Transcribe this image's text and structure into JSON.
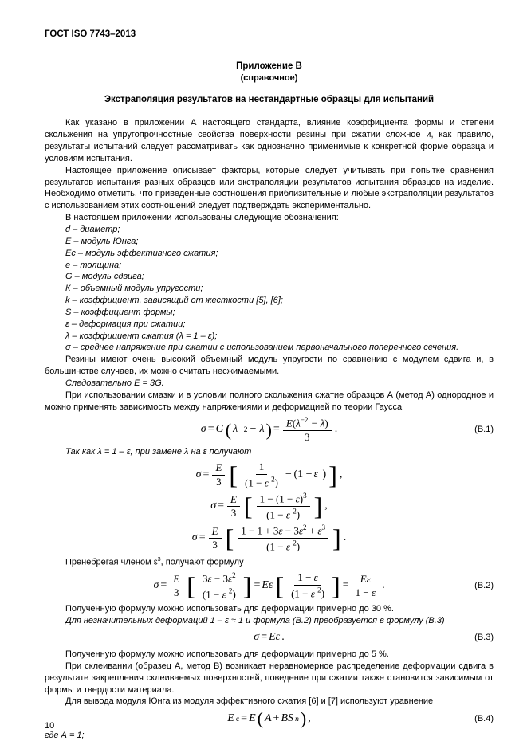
{
  "doc_id": "ГОСТ ISO 7743–2013",
  "appendix_title": "Приложение В",
  "appendix_sub": "(справочное)",
  "appendix_heading": "Экстраполяция результатов на нестандартные образцы для испытаний",
  "p1": "Как указано в приложении А настоящего стандарта, влияние коэффициента формы и степени скольжения на упругопрочностные свойства поверхности резины при сжатии сложное и, как правило, результаты испытаний следует рассматривать как однозначно применимые к конкретной форме образца и условиям испытания.",
  "p2": "Настоящее приложение описывает факторы, которые следует учитывать при попытке сравнения результатов испытания разных образцов или экстраполяции результатов испытания образцов на изделие. Необходимо отметить, что приведенные соотношения приблизительные и любые экстраполяции результатов с использованием этих соотношений следует подтверждать экспериментально.",
  "p3": "В настоящем приложении использованы следующие обозначения:",
  "defs": {
    "d": "d – диаметр;",
    "E": "Е – модуль Юнга;",
    "Ec": "Eс – модуль эффективного сжатия;",
    "e": "е – толщина;",
    "G": "G – модуль сдвига;",
    "K": "К – объемный модуль упругости;",
    "k": "k – коэффициент, зависящий от жесткости [5], [6];",
    "S": "S – коэффициент формы;",
    "eps": "ε – деформация при сжатии;",
    "lam": "λ – коэффициент сжатия (λ = 1 – ε);",
    "sig": "σ – среднее напряжение при сжатии с использованием первоначального поперечного сечения."
  },
  "p4": "Резины имеют очень высокий объемный модуль упругости по сравнению с модулем сдвига и, в большинстве случаев, их можно считать несжимаемыми.",
  "p5": "Следовательно Е = 3G.",
  "p6": "При использовании смазки и в условии полного скольжения сжатие образцов А (метод А) однородное и можно применять зависимость между напряжениями и деформацией по теории Гаусса",
  "p7": "Так как λ = 1 – ε, при замене λ на ε получают",
  "p8_pre": "Пренебрегая членом ε",
  "p8_post": ", получают формулу",
  "p9": "Полученную формулу можно использовать для деформации примерно до 30 %.",
  "p10": "Для незначительных деформаций 1 – ε ≈ 1 и  формула (В.2) преобразуется в формулу (В.3)",
  "p11": "Полученную формулу можно использовать для деформации примерно до 5 %.",
  "p12": "При склеивании (образец А, метод В) возникает неравномерное распределение деформации сдвига в результате закрепления склеиваемых поверхностей,  поведение при сжатии также становится зависимым от формы и твердости материала.",
  "p13": "Для вывода модуля Юнга из модуля эффективного сжатия [6] и [7] используют уравнение",
  "p14": "где А = 1;",
  "eqnum": {
    "b1": "(В.1)",
    "b2": "(В.2)",
    "b3": "(В.3)",
    "b4": "(В.4)"
  },
  "pagenum": "10"
}
